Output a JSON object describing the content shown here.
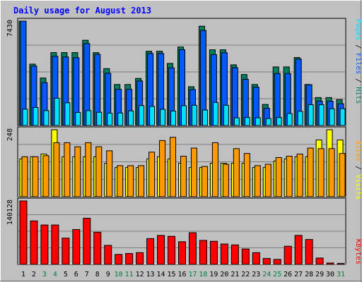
{
  "chart_data": {
    "type": "bar",
    "title": "Daily usage for August 2013",
    "categories": [
      "1",
      "2",
      "3",
      "4",
      "5",
      "6",
      "7",
      "8",
      "9",
      "10",
      "11",
      "12",
      "13",
      "14",
      "15",
      "16",
      "17",
      "18",
      "19",
      "20",
      "21",
      "22",
      "23",
      "24",
      "25",
      "26",
      "27",
      "28",
      "29",
      "30",
      "31"
    ],
    "weekend_days": [
      "3",
      "4",
      "10",
      "11",
      "17",
      "18",
      "24",
      "25",
      "31"
    ],
    "colors": {
      "background": "#c0c0c0",
      "title": "#0000ff",
      "weekday_label": "#000000",
      "weekend_label": "#008040",
      "hits": "#007f60",
      "files": "#0058ff",
      "pages": "#00e0ff",
      "visits": "#ffff00",
      "sites": "#ff9900",
      "kbytes": "#ff0000"
    },
    "panels": [
      {
        "id": "hits-files-pages",
        "ymax_label": "7430",
        "ylim": [
          0,
          7430
        ],
        "series": [
          {
            "name": "Hits",
            "values": [
              7430,
              4370,
              3380,
              5190,
              5190,
              5190,
              6070,
              5190,
              4050,
              2920,
              2920,
              3350,
              5290,
              5290,
              4420,
              5590,
              2760,
              7070,
              5390,
              5390,
              4320,
              3630,
              2920,
              1500,
              4170,
              4170,
              4840,
              2920,
              1990,
              1990,
              1840
            ]
          },
          {
            "name": "Files",
            "values": [
              7430,
              4230,
              3050,
              4930,
              4880,
              4830,
              5830,
              5060,
              3720,
              2580,
              2580,
              3170,
              5130,
              5130,
              4110,
              5400,
              2560,
              6770,
              5050,
              5180,
              4120,
              3290,
              2730,
              1230,
              3700,
              3700,
              4730,
              2900,
              1740,
              1730,
              1550
            ]
          },
          {
            "name": "Pages",
            "values": [
              1160,
              1280,
              1060,
              1940,
              1620,
              930,
              1060,
              940,
              880,
              890,
              1040,
              1420,
              1360,
              1150,
              1030,
              1410,
              1440,
              1100,
              1640,
              1440,
              550,
              570,
              550,
              500,
              570,
              850,
              1010,
              1480,
              1480,
              1190,
              1200
            ]
          }
        ]
      },
      {
        "id": "visits-sites",
        "ymax_label": "248",
        "ylim": [
          0,
          248
        ],
        "series": [
          {
            "name": "Visits",
            "values": [
              140,
              148,
              158,
              248,
              148,
              148,
              148,
              148,
              124,
              108,
              108,
              108,
              140,
              148,
              140,
              124,
              108,
              108,
              124,
              124,
              124,
              124,
              108,
              108,
              132,
              140,
              148,
              148,
              210,
              248,
              210
            ]
          },
          {
            "name": "Sites",
            "values": [
              148,
              148,
              152,
              200,
              200,
              185,
              200,
              185,
              170,
              115,
              115,
              115,
              165,
              208,
              220,
              150,
              180,
              112,
              200,
              120,
              178,
              160,
              115,
              120,
              145,
              150,
              158,
              180,
              178,
              178,
              160
            ]
          }
        ]
      },
      {
        "id": "kbytes",
        "ymax_label": "140128",
        "ylim": [
          0,
          140128
        ],
        "series": [
          {
            "name": "KBytes",
            "values": [
              140128,
              96000,
              87000,
              87000,
              58000,
              77000,
              102000,
              71000,
              42000,
              22000,
              24000,
              26000,
              57000,
              64000,
              62000,
              50000,
              70000,
              53000,
              51000,
              45000,
              43000,
              34000,
              26000,
              13000,
              11000,
              40000,
              64000,
              55000,
              14000,
              3000,
              2000
            ]
          }
        ]
      }
    ],
    "legend_right": [
      {
        "text": "Pages",
        "color": "#00e0ff"
      },
      {
        "text": " / ",
        "color": "#000000"
      },
      {
        "text": "Files",
        "color": "#0058ff"
      },
      {
        "text": " / ",
        "color": "#000000"
      },
      {
        "text": "Hits",
        "color": "#007f60"
      }
    ],
    "legend_right_2": [
      {
        "text": "Sites",
        "color": "#ff9900"
      },
      {
        "text": " / ",
        "color": "#000000"
      },
      {
        "text": "Visits",
        "color": "#ffff00"
      }
    ],
    "legend_right_3": [
      {
        "text": "KBytes",
        "color": "#ff0000"
      }
    ]
  }
}
